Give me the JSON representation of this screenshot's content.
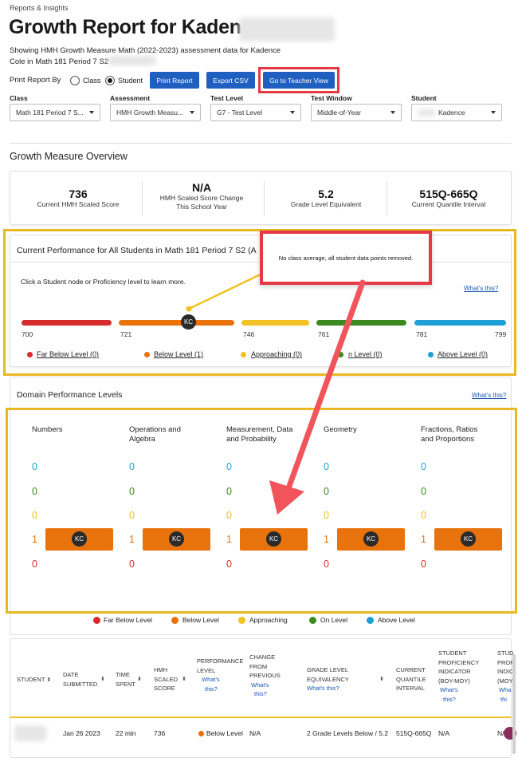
{
  "breadcrumb": "Reports & Insights",
  "title": "Growth Report for Kaden",
  "subtitle_line1": "Showing HMH Growth Measure Math (2022-2023) assessment data for Kadence",
  "subtitle_line2": "Cole in Math 181 Period 7 S2",
  "print_report_by": "Print Report By",
  "radio_class": "Class",
  "radio_student": "Student",
  "btn_print": "Print Report",
  "btn_export": "Export CSV",
  "btn_teacher": "Go to Teacher View",
  "filters": {
    "class_label": "Class",
    "class_value": "Math 181 Period 7 S...",
    "assessment_label": "Assessment",
    "assessment_value": "HMH Growth Measu...",
    "testlevel_label": "Test Level",
    "testlevel_value": "G7 - Test Level",
    "window_label": "Test Window",
    "window_value": "Middle-of-Year",
    "student_label": "Student",
    "student_value": "Kadence"
  },
  "overview": {
    "title": "Growth Measure Overview",
    "s1_value": "736",
    "s1_label": "Current HMH Scaled Score",
    "s2_value": "N/A",
    "s2_label1": "HMH Scaled Score Change",
    "s2_label2": "This School Year",
    "s3_value": "5.2",
    "s3_label": "Grade Level Equivalent",
    "s4_value": "515Q-665Q",
    "s4_label": "Current Quantile Interval"
  },
  "performance": {
    "title": "Current Performance for All Students in Math 181 Period 7 S2 (A",
    "hint": "Click a Student node or Proficiency level to learn more.",
    "whats_this": "What's this?",
    "tooltip": "No class average, all student data points removed.",
    "kc": "KC",
    "ticks": [
      "700",
      "721",
      "746",
      "761",
      "781",
      "799"
    ],
    "legend": {
      "far_below": "Far Below Level (0)",
      "below": "Below Level (1)",
      "approaching": "Approaching (0)",
      "on": "On Level (0)",
      "on_visible": "n Level (0)",
      "above": "Above Level (0)"
    }
  },
  "domain": {
    "title": "Domain Performance Levels",
    "whats_this": "What's this?",
    "col1": "Numbers",
    "col2_l1": "Operations and",
    "col2_l2": "Algebra",
    "col3_l1": "Measurement, Data",
    "col3_l2": "and Probability",
    "col4": "Geometry",
    "col5_l1": "Fractions, Ratios",
    "col5_l2": "and Proportions",
    "counts": [
      "0",
      "0",
      "0",
      "1",
      "0"
    ],
    "kc": "KC",
    "legend": [
      "Far Below Level",
      "Below Level",
      "Approaching",
      "On Level",
      "Above Level"
    ]
  },
  "table": {
    "h_student": "STUDENT",
    "h_date1": "DATE",
    "h_date2": "SUBMITTED",
    "h_time1": "TIME",
    "h_time2": "SPENT",
    "h_hmh1": "HMH",
    "h_hmh2": "SCALED",
    "h_hmh3": "SCORE",
    "h_perf1": "PERFORMANCE",
    "h_perf2": "LEVEL",
    "h_perf_link1": "What's",
    "h_perf_link2": "this?",
    "h_change1": "CHANGE",
    "h_change2": "FROM",
    "h_change3": "PREVIOUS",
    "h_change_link1": "What's",
    "h_change_link2": "this?",
    "h_grade1": "GRADE LEVEL",
    "h_grade2": "EQUIVALENCY",
    "h_grade_link": "What's this?",
    "h_quant1": "CURRENT",
    "h_quant2": "QUANTILE",
    "h_quant3": "INTERVAL",
    "h_spi1": "STUDENT",
    "h_spi2": "PROFICIENCY",
    "h_spi3": "INDICATOR",
    "h_spi4": "(BOY-MOY)",
    "h_spi_link1": "What's",
    "h_spi_link2": "this?",
    "h_stu2_1": "STUD",
    "h_stu2_2": "PROF",
    "h_stu2_3": "INDIC",
    "h_stu2_4": "(MOY",
    "h_stu2_link1": "Wha",
    "h_stu2_link2": "thi",
    "row": {
      "date": "Jan 26 2023",
      "time": "22 min",
      "score": "736",
      "level": "Below Level",
      "change": "N/A",
      "grade": "2 Grade Levels Below / 5.2",
      "quantile": "515Q-665Q",
      "spi": "N/A",
      "last": "N/A"
    }
  },
  "colors": {
    "far_below": "#d62b2b",
    "below": "#e8720c",
    "approaching": "#f2c124",
    "on_level": "#3a8a1f",
    "above": "#1ea0d6",
    "button": "#1f5fbf",
    "highlight_red": "#e53946",
    "highlight_yellow": "#e8b923"
  }
}
